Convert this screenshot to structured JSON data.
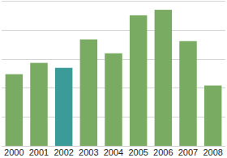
{
  "chart_data": {
    "type": "bar",
    "categories": [
      "2000",
      "2001",
      "2002",
      "2003",
      "2004",
      "2005",
      "2006",
      "2007",
      "2008"
    ],
    "values": [
      2.47,
      2.86,
      2.69,
      3.67,
      3.19,
      4.5,
      4.69,
      3.61,
      2.08
    ],
    "colors": [
      "#7aab62",
      "#7aab62",
      "#3a9b98",
      "#7aab62",
      "#7aab62",
      "#7aab62",
      "#7aab62",
      "#7aab62",
      "#7aab62"
    ],
    "ylim": [
      0,
      5
    ],
    "yticks": [
      0,
      1,
      2,
      3,
      4,
      5
    ],
    "grid": true,
    "tick_labels": "x"
  }
}
